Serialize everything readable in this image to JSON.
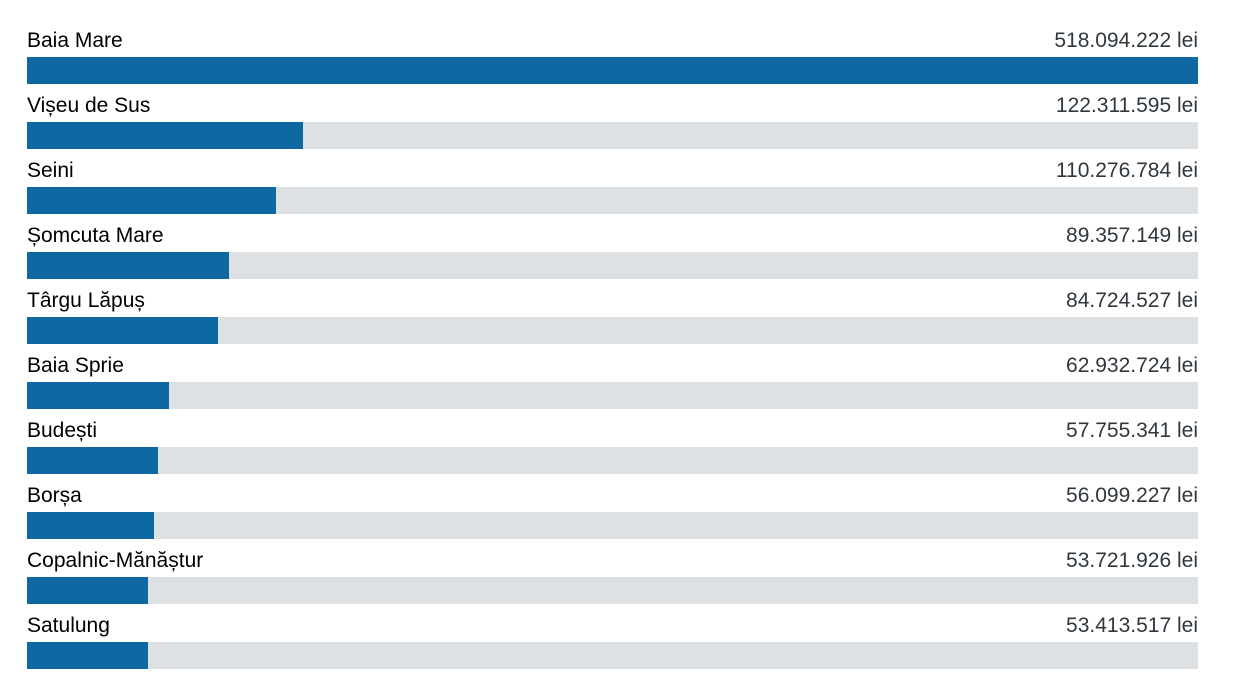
{
  "chart_data": {
    "type": "bar",
    "orientation": "horizontal",
    "title": "",
    "xlabel": "",
    "ylabel": "",
    "unit": "lei",
    "value_axis_min": 0,
    "value_axis_max": 518094222,
    "grid": false,
    "legend": false,
    "categories": [
      "Baia Mare",
      "Vișeu de Sus",
      "Seini",
      "Șomcuta Mare",
      "Târgu Lăpuș",
      "Baia Sprie",
      "Budești",
      "Borșa",
      "Copalnic-Mănăștur",
      "Satulung"
    ],
    "values": [
      518094222,
      122311595,
      110276784,
      89357149,
      84724527,
      62932724,
      57755341,
      56099227,
      53721926,
      53413517
    ],
    "value_labels": [
      "518.094.222 lei",
      "122.311.595 lei",
      "110.276.784 lei",
      "89.357.149 lei",
      "84.724.527 lei",
      "62.932.724 lei",
      "57.755.341 lei",
      "56.099.227 lei",
      "53.721.926 lei",
      "53.413.517 lei"
    ]
  },
  "colors": {
    "bar_fill": "#0E69A3",
    "bar_track": "#DEE1E4",
    "category_text": "#000000",
    "value_text": "#30373D",
    "background": "#FFFFFF"
  }
}
